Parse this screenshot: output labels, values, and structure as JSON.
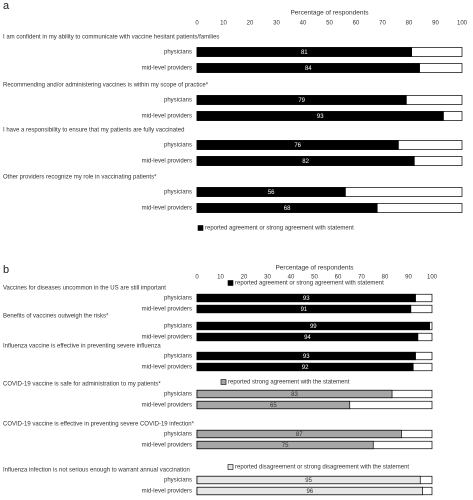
{
  "chart_data": [
    {
      "type": "bar",
      "orientation": "horizontal",
      "panel": "a",
      "xlabel": "Percentage of respondents",
      "xlim": [
        0,
        100
      ],
      "xticks": [
        0,
        10,
        20,
        30,
        40,
        50,
        60,
        70,
        80,
        90,
        100
      ],
      "legend_position": "bottom",
      "sections": [
        {
          "legend": {
            "name": "reported agreement or strong agreement with statement",
            "color": "#000000"
          },
          "groups": [
            {
              "label": "I am confident in my ability to communicate with vaccine hesitant patients/families",
              "categories": [
                "physicians",
                "mid-level providers"
              ],
              "values": [
                81,
                84
              ]
            },
            {
              "label": "Recommending and/or administering vaccines is within my scope of practice*",
              "categories": [
                "physicians",
                "mid-level providers"
              ],
              "values": [
                79,
                93
              ]
            },
            {
              "label": "I have a responsibility to ensure that my patients are fully vaccinated",
              "categories": [
                "physicians",
                "mid-level providers"
              ],
              "values": [
                76,
                82
              ]
            },
            {
              "label": "Other providers recognize my role in vaccinating patients*",
              "categories": [
                "physicians",
                "mid-level providers"
              ],
              "values": [
                56,
                68
              ]
            }
          ]
        }
      ]
    },
    {
      "type": "bar",
      "orientation": "horizontal",
      "panel": "b",
      "xlabel": "Percentage of respondents",
      "xlim": [
        0,
        100
      ],
      "xticks": [
        0,
        10,
        20,
        30,
        40,
        50,
        60,
        70,
        80,
        90,
        100
      ],
      "legend_position": "top",
      "sections": [
        {
          "legend": {
            "name": "reported agreement or strong agreement with statement",
            "color": "#000000"
          },
          "groups": [
            {
              "label": "Vaccines for diseases uncommon in the US are still important",
              "categories": [
                "physicians",
                "mid-level providers"
              ],
              "values": [
                93,
                91
              ]
            },
            {
              "label": "Benefits of vaccines outweigh the risks*",
              "categories": [
                "physicians",
                "mid-level providers"
              ],
              "values": [
                99,
                94
              ]
            },
            {
              "label": "Influenza vaccine is effective in preventing severe influenza",
              "categories": [
                "physicians",
                "mid-level providers"
              ],
              "values": [
                93,
                92
              ]
            }
          ]
        },
        {
          "legend": {
            "name": "reported strong agreement with the statement",
            "color": "#a6a6a6"
          },
          "groups": [
            {
              "label": "COVID-19 vaccine is safe for administration to my patients*",
              "categories": [
                "physicians",
                "mid-level providers"
              ],
              "values": [
                83,
                65
              ]
            },
            {
              "label": "COVID-19 vaccine is effective in preventing severe COVID-19 infection*",
              "categories": [
                "physicians",
                "mid-level providers"
              ],
              "values": [
                87,
                75
              ]
            }
          ]
        },
        {
          "legend": {
            "name": "reported disagreement or strong disagreement with the statement",
            "color": "#e6e6e6"
          },
          "groups": [
            {
              "label": "Influenza infection is not serious enough to warrant annual vaccination",
              "categories": [
                "physicians",
                "mid-level providers"
              ],
              "values": [
                95,
                96
              ]
            }
          ]
        }
      ]
    }
  ]
}
